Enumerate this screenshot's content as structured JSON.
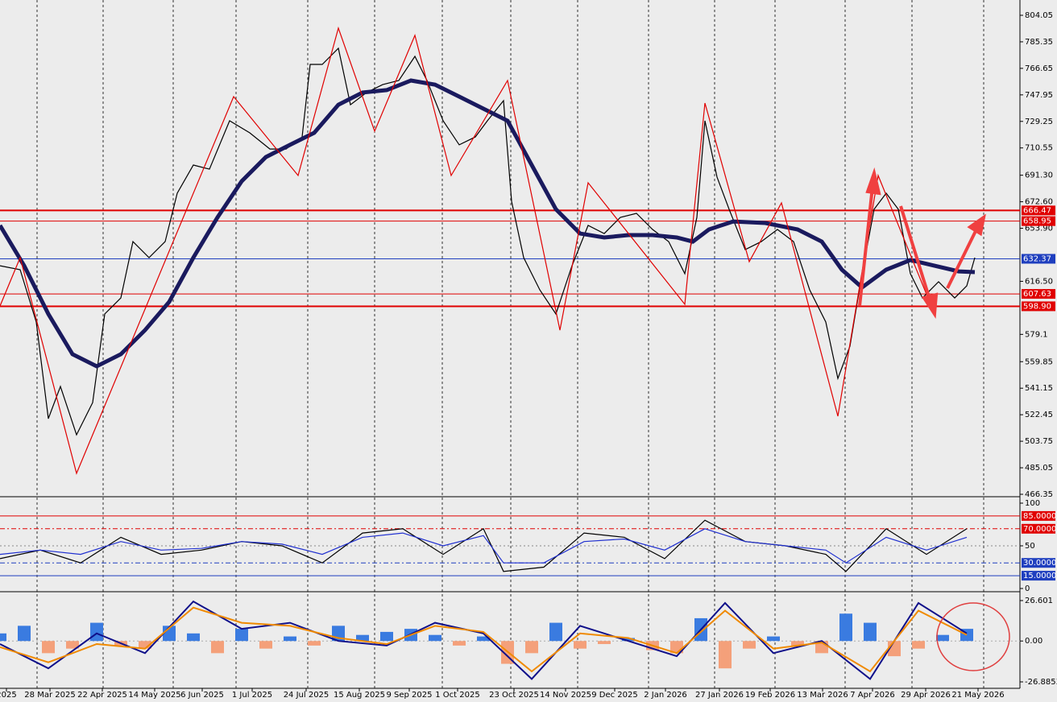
{
  "chart_data": [
    {
      "type": "line",
      "panel": "price",
      "ylim": [
        465.78,
        814.83
      ],
      "xlim": [
        0,
        253.2
      ],
      "yticks": [
        804.05,
        785.35,
        766.65,
        747.95,
        729.25,
        710.55,
        {
          "value": 691.3,
          "label": "691.30"
        },
        {
          "value": 672.6,
          "label": "672.60"
        },
        {
          "value": 653.9,
          "label": "653.90"
        },
        {
          "value": 616.5,
          "label": "616.50"
        },
        579.1,
        559.85,
        541.15,
        522.45,
        503.75,
        485.05,
        466.35
      ],
      "xticks": [
        {
          "value": 1.6,
          "label": "2025"
        },
        {
          "value": 12.4,
          "label": "28 Mar 2025"
        },
        {
          "value": 25.4,
          "label": "22 Apr 2025"
        },
        {
          "value": 38.4,
          "label": "14 May 2025"
        },
        {
          "value": 50.2,
          "label": "6 Jun 2025"
        },
        {
          "value": 62.6,
          "label": "1 Jul 2025"
        },
        {
          "value": 76,
          "label": "24 Jul 2025"
        },
        {
          "value": 89.2,
          "label": "15 Aug 2025"
        },
        {
          "value": 101.6,
          "label": "9 Sep 2025"
        },
        {
          "value": 113.6,
          "label": "1 Oct 2025"
        },
        {
          "value": 127.6,
          "label": "23 Oct 2025"
        },
        {
          "value": 140.4,
          "label": "14 Nov 2025"
        },
        {
          "value": 152.6,
          "label": "9 Dec 2025"
        },
        {
          "value": 165.2,
          "label": "2 Jan 2026"
        },
        {
          "value": 178.6,
          "label": "27 Jan 2026"
        },
        {
          "value": 191.2,
          "label": "19 Feb 2026"
        },
        {
          "value": 204.2,
          "label": "13 Mar 2026"
        },
        {
          "value": 216.6,
          "label": "7 Apr 2026"
        },
        {
          "value": 229.8,
          "label": "29 Apr 2026"
        },
        {
          "value": 242.8,
          "label": "21 May 2026"
        }
      ],
      "levels": [
        {
          "value": 666.47,
          "label": "666.47",
          "color": "#e00000"
        },
        {
          "value": 658.95,
          "label": "658.95",
          "color": "#e00000"
        },
        {
          "value": 632.37,
          "label": "632.37",
          "color": "#1f3fbf"
        },
        {
          "value": 607.63,
          "label": "607.63",
          "color": "#e00000"
        },
        {
          "value": 598.9,
          "label": "598.90",
          "color": "#e00000"
        }
      ],
      "series": [
        {
          "color": "#000000",
          "x": [
            0,
            5,
            9,
            12,
            15,
            19,
            23,
            26,
            30,
            33,
            37,
            41,
            44,
            48,
            52,
            57,
            62,
            67,
            71,
            75,
            77,
            80,
            84,
            87,
            91,
            95,
            99,
            103,
            106,
            110,
            114,
            118,
            121,
            125,
            127,
            130,
            134,
            138,
            142,
            146,
            150,
            154,
            158,
            162,
            166,
            170,
            173,
            175,
            178,
            181,
            185,
            189,
            193,
            197,
            201,
            205,
            208,
            211,
            214,
            217,
            220,
            223,
            226,
            229,
            233,
            237,
            240,
            242
          ],
          "values": [
            627.5,
            624.7,
            587.8,
            519.7,
            542.4,
            508.3,
            531.0,
            593.5,
            604.8,
            644.5,
            633.2,
            644.5,
            678.6,
            698.5,
            695.6,
            729.7,
            721.2,
            709.8,
            709.8,
            718.3,
            769.4,
            769.4,
            780.8,
            741.0,
            749.6,
            755.2,
            758.1,
            775.1,
            758.1,
            729.7,
            712.7,
            718.3,
            729.7,
            743.9,
            672.9,
            633.2,
            610.5,
            593.5,
            627.5,
            655.9,
            650.2,
            661.6,
            664.4,
            653.1,
            644.5,
            621.9,
            661.6,
            729.7,
            690.0,
            667.3,
            638.9,
            644.5,
            653.1,
            644.5,
            610.5,
            587.8,
            548.0,
            570.8,
            621.9,
            667.3,
            678.6,
            667.3,
            621.9,
            604.8,
            616.2,
            604.8,
            613.3,
            633.2
          ]
        },
        {
          "color": "#1a1a5e",
          "x": [
            0,
            6,
            12,
            18,
            24,
            30,
            36,
            42,
            48,
            54,
            60,
            66,
            72,
            78,
            84,
            90,
            96,
            102,
            108,
            114,
            120,
            126,
            132,
            138,
            144,
            150,
            156,
            162,
            168,
            172,
            176,
            182,
            190,
            198,
            204,
            209,
            214,
            220,
            226,
            232,
            238,
            242
          ],
          "values": [
            655.9,
            627.5,
            593.5,
            565.1,
            556.6,
            565.1,
            582.1,
            602.0,
            633.2,
            661.6,
            687.1,
            704.1,
            712.7,
            721.2,
            741.0,
            749.6,
            751.3,
            758.1,
            755.2,
            746.7,
            738.2,
            729.7,
            698.5,
            667.3,
            650.2,
            647.4,
            649.1,
            649.1,
            647.4,
            644.5,
            653.1,
            658.7,
            657.6,
            653.1,
            644.5,
            624.7,
            612.2,
            624.7,
            631.5,
            627.5,
            623.5,
            623.0
          ]
        },
        {
          "color": "#e00000",
          "x": [
            0,
            5,
            19,
            58,
            74,
            84,
            93,
            103,
            112,
            126,
            139,
            146,
            170,
            175,
            186,
            194,
            208,
            218,
            232
          ],
          "values": [
            599.1,
            633.2,
            481.1,
            746.7,
            691.1,
            795.0,
            722.3,
            789.9,
            691.1,
            758.1,
            582.1,
            686.0,
            600.3,
            742.2,
            630.4,
            671.8,
            521.4,
            691.1,
            593.5
          ]
        }
      ]
    },
    {
      "type": "line",
      "panel": "oscillator",
      "ylim": [
        0,
        100
      ],
      "xlim": [
        0,
        253.2
      ],
      "yticks": [
        100,
        50,
        0
      ],
      "levels": [
        {
          "value": 85,
          "label": "85.0000",
          "color": "#e00000"
        },
        {
          "value": 70,
          "label": "70.0000",
          "color": "#e00000"
        },
        {
          "value": 30,
          "label": "30.0000",
          "color": "#1f3fbf"
        },
        {
          "value": 15,
          "label": "15.0000",
          "color": "#1f3fbf"
        }
      ],
      "series": [
        {
          "color": "#000000",
          "x": [
            0,
            10,
            20,
            30,
            40,
            50,
            60,
            70,
            80,
            90,
            100,
            110,
            120,
            125,
            135,
            145,
            155,
            165,
            175,
            185,
            195,
            205,
            210,
            220,
            230,
            240
          ],
          "values": [
            35,
            45,
            30,
            60,
            40,
            45,
            55,
            50,
            30,
            65,
            70,
            40,
            70,
            20,
            25,
            65,
            60,
            35,
            80,
            55,
            50,
            40,
            20,
            70,
            40,
            70
          ]
        },
        {
          "color": "#2030d0",
          "x": [
            0,
            10,
            20,
            30,
            40,
            50,
            60,
            70,
            80,
            90,
            100,
            110,
            120,
            125,
            135,
            145,
            155,
            165,
            175,
            185,
            195,
            205,
            210,
            220,
            230,
            240
          ],
          "values": [
            40,
            45,
            40,
            55,
            45,
            47,
            55,
            52,
            40,
            60,
            65,
            50,
            62,
            30,
            30,
            55,
            58,
            45,
            70,
            55,
            50,
            45,
            30,
            60,
            45,
            60
          ]
        }
      ]
    },
    {
      "type": "histogram-line",
      "panel": "macd",
      "ylim": [
        -30.06,
        29.78
      ],
      "xlim": [
        0,
        253.2
      ],
      "yticks": [
        26.601,
        {
          "value": 0,
          "label": "0.00"
        },
        -26.8853
      ],
      "bars": {
        "pos_color": "#3a7be0",
        "neg_color": "#f4a07a",
        "x": [
          0,
          6,
          12,
          18,
          24,
          30,
          36,
          42,
          48,
          54,
          60,
          66,
          72,
          78,
          84,
          90,
          96,
          102,
          108,
          114,
          120,
          126,
          132,
          138,
          144,
          150,
          156,
          162,
          168,
          174,
          180,
          186,
          192,
          198,
          204,
          210,
          216,
          222,
          228,
          234,
          240
        ],
        "values": [
          5,
          10,
          -8,
          -5,
          12,
          -3,
          -5,
          10,
          5,
          -8,
          8,
          -5,
          3,
          -3,
          10,
          4,
          6,
          8,
          4,
          -3,
          3,
          -15,
          -8,
          12,
          -5,
          -2,
          2,
          -6,
          -8,
          15,
          -18,
          -5,
          3,
          -3,
          -8,
          18,
          12,
          -10,
          -5,
          4,
          8
        ]
      },
      "series": [
        {
          "color": "#10108a",
          "x": [
            0,
            12,
            24,
            36,
            48,
            60,
            72,
            84,
            96,
            108,
            120,
            132,
            144,
            156,
            168,
            180,
            192,
            204,
            216,
            228,
            240
          ],
          "values": [
            -2,
            -18,
            5,
            -8,
            26,
            8,
            12,
            0,
            -3,
            12,
            5,
            -25,
            10,
            0,
            -10,
            25,
            -8,
            0,
            -25,
            25,
            5
          ]
        },
        {
          "color": "#f08a00",
          "x": [
            0,
            12,
            24,
            36,
            48,
            60,
            72,
            84,
            96,
            108,
            120,
            132,
            144,
            156,
            168,
            180,
            192,
            204,
            216,
            228,
            240
          ],
          "values": [
            -4,
            -14,
            -2,
            -5,
            22,
            12,
            10,
            2,
            -2,
            10,
            6,
            -20,
            5,
            2,
            -8,
            20,
            -5,
            -1,
            -20,
            20,
            4
          ]
        }
      ]
    }
  ]
}
